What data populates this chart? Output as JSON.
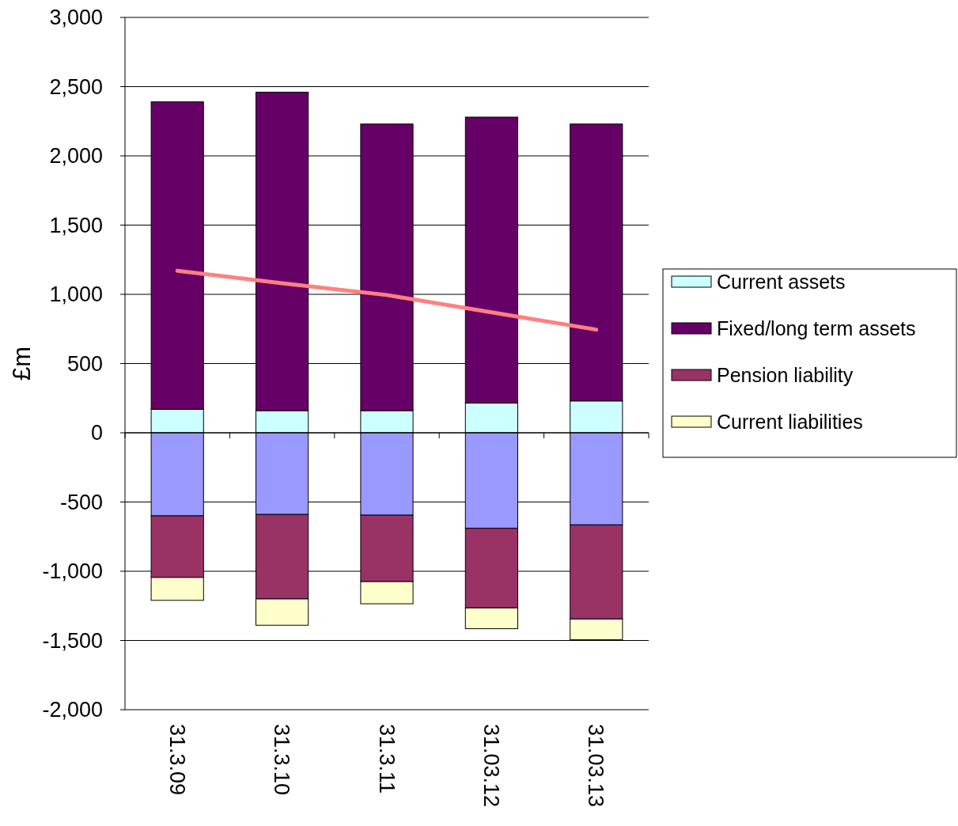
{
  "chart_data": {
    "type": "bar",
    "stacked": true,
    "ylabel": "£m",
    "categories": [
      "31.3.09",
      "31.3.10",
      "31.3.11",
      "31.03.12",
      "31.03.13"
    ],
    "series": [
      {
        "name": "Current assets",
        "color": "#ccffff",
        "values": [
          170,
          160,
          160,
          215,
          230
        ]
      },
      {
        "name": "Fixed/long term assets",
        "color": "#660066",
        "values": [
          2220,
          2300,
          2070,
          2065,
          2000
        ]
      },
      {
        "color": "#9999ff",
        "values": [
          -600,
          -590,
          -595,
          -690,
          -665
        ]
      },
      {
        "name": "Pension liability",
        "color": "#993366",
        "values": [
          -445,
          -610,
          -480,
          -575,
          -680
        ]
      },
      {
        "name": "Current liabilities",
        "color": "#ffffcc",
        "values": [
          -165,
          -190,
          -160,
          -150,
          -150
        ]
      },
      {
        "type": "line",
        "color": "#ff8080",
        "values": [
          1170,
          1080,
          995,
          870,
          745
        ]
      }
    ],
    "ylim": [
      -2000,
      3000
    ],
    "yticks": [
      {
        "value": -2000,
        "label": "-2,000"
      },
      {
        "value": -1500,
        "label": "-1,500"
      },
      {
        "value": -1000,
        "label": "-1,000"
      },
      {
        "value": -500,
        "label": "-500"
      },
      0,
      {
        "value": 500,
        "label": "500"
      },
      {
        "value": 1000,
        "label": "1,000"
      },
      {
        "value": 1500,
        "label": "1,500"
      },
      {
        "value": 2000,
        "label": "2,000"
      },
      {
        "value": 2500,
        "label": "2,500"
      },
      {
        "value": 3000,
        "label": "3,000"
      }
    ],
    "grid": "y",
    "legend": "right"
  }
}
